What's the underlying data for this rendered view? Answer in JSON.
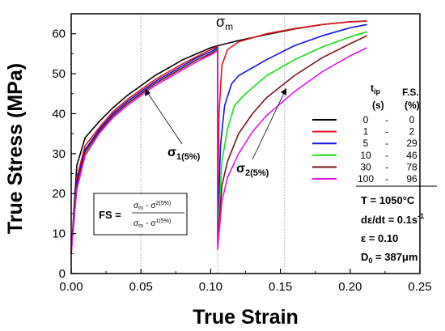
{
  "chart_data": {
    "type": "line",
    "xlabel": "True Strain",
    "ylabel": "True Stress (MPa)",
    "xlim": [
      0.0,
      0.25
    ],
    "ylim": [
      0,
      65
    ],
    "x_ticks": [
      "0.00",
      "0.05",
      "0.10",
      "0.15",
      "0.20",
      "0.25"
    ],
    "y_ticks": [
      "0",
      "10",
      "20",
      "30",
      "40",
      "50",
      "60"
    ],
    "grid": false,
    "reference_lines_x": [
      0.05,
      0.105,
      0.153
    ],
    "legend": {
      "placement": "right",
      "header_col1": "tip",
      "header_col1_base": "t",
      "header_col1_sub": "ip",
      "header_col1_unit": "(s)",
      "header_col2": "F.S.",
      "header_col2_unit": "(%)",
      "separator": "-"
    },
    "series": [
      {
        "tip": "0",
        "fs": "0",
        "color": "#000000",
        "points": [
          [
            0.0,
            5
          ],
          [
            0.004,
            27
          ],
          [
            0.01,
            34
          ],
          [
            0.02,
            38
          ],
          [
            0.03,
            41.5
          ],
          [
            0.04,
            44.5
          ],
          [
            0.05,
            47
          ],
          [
            0.06,
            49.5
          ],
          [
            0.07,
            51.5
          ],
          [
            0.08,
            53.5
          ],
          [
            0.09,
            55
          ],
          [
            0.1,
            56.5
          ],
          [
            0.105,
            57
          ],
          [
            0.12,
            58.3
          ],
          [
            0.14,
            59.8
          ],
          [
            0.16,
            61.2
          ],
          [
            0.18,
            62.3
          ],
          [
            0.2,
            63
          ],
          [
            0.212,
            63.2
          ]
        ]
      },
      {
        "tip": "1",
        "fs": "2",
        "color": "#e8141c",
        "points": [
          [
            0.0,
            5
          ],
          [
            0.004,
            24
          ],
          [
            0.01,
            32
          ],
          [
            0.02,
            36.5
          ],
          [
            0.03,
            40.5
          ],
          [
            0.04,
            43.5
          ],
          [
            0.05,
            46
          ],
          [
            0.06,
            48.5
          ],
          [
            0.07,
            50.5
          ],
          [
            0.08,
            52.5
          ],
          [
            0.09,
            54.3
          ],
          [
            0.1,
            56
          ],
          [
            0.105,
            56.8
          ],
          [
            0.105,
            10
          ],
          [
            0.106,
            40
          ],
          [
            0.108,
            52
          ],
          [
            0.112,
            56
          ],
          [
            0.12,
            58
          ],
          [
            0.14,
            60
          ],
          [
            0.16,
            61.3
          ],
          [
            0.18,
            62.3
          ],
          [
            0.2,
            63
          ],
          [
            0.212,
            63.2
          ]
        ]
      },
      {
        "tip": "5",
        "fs": "29",
        "color": "#1414e8",
        "points": [
          [
            0.0,
            5
          ],
          [
            0.004,
            23
          ],
          [
            0.01,
            31
          ],
          [
            0.02,
            36
          ],
          [
            0.03,
            40
          ],
          [
            0.04,
            43
          ],
          [
            0.05,
            45.5
          ],
          [
            0.06,
            48
          ],
          [
            0.07,
            50
          ],
          [
            0.08,
            52
          ],
          [
            0.09,
            54
          ],
          [
            0.1,
            55.5
          ],
          [
            0.105,
            56.5
          ],
          [
            0.105,
            9
          ],
          [
            0.107,
            32
          ],
          [
            0.11,
            42
          ],
          [
            0.115,
            47.5
          ],
          [
            0.12,
            49.5
          ],
          [
            0.14,
            53.5
          ],
          [
            0.16,
            57
          ],
          [
            0.18,
            59.5
          ],
          [
            0.2,
            61.5
          ],
          [
            0.212,
            62.3
          ]
        ]
      },
      {
        "tip": "10",
        "fs": "46",
        "color": "#14e014",
        "points": [
          [
            0.0,
            5
          ],
          [
            0.004,
            22
          ],
          [
            0.01,
            30
          ],
          [
            0.02,
            35.5
          ],
          [
            0.03,
            39.5
          ],
          [
            0.04,
            42.5
          ],
          [
            0.05,
            45
          ],
          [
            0.06,
            47.5
          ],
          [
            0.07,
            49.5
          ],
          [
            0.08,
            51.5
          ],
          [
            0.09,
            53.5
          ],
          [
            0.1,
            55
          ],
          [
            0.105,
            56.2
          ],
          [
            0.105,
            8
          ],
          [
            0.108,
            28
          ],
          [
            0.112,
            36
          ],
          [
            0.117,
            42
          ],
          [
            0.125,
            45
          ],
          [
            0.14,
            49.5
          ],
          [
            0.16,
            53.5
          ],
          [
            0.18,
            56.7
          ],
          [
            0.2,
            59.2
          ],
          [
            0.212,
            60.5
          ]
        ]
      },
      {
        "tip": "30",
        "fs": "78",
        "color": "#7a1414",
        "points": [
          [
            0.0,
            5
          ],
          [
            0.004,
            22
          ],
          [
            0.01,
            30.5
          ],
          [
            0.02,
            35.5
          ],
          [
            0.03,
            39.5
          ],
          [
            0.04,
            42.5
          ],
          [
            0.05,
            45
          ],
          [
            0.06,
            47.5
          ],
          [
            0.07,
            49.5
          ],
          [
            0.08,
            51.5
          ],
          [
            0.09,
            53.5
          ],
          [
            0.1,
            55
          ],
          [
            0.105,
            56
          ],
          [
            0.105,
            7
          ],
          [
            0.108,
            22
          ],
          [
            0.112,
            28
          ],
          [
            0.12,
            35
          ],
          [
            0.13,
            40
          ],
          [
            0.14,
            44
          ],
          [
            0.16,
            49.5
          ],
          [
            0.18,
            54
          ],
          [
            0.2,
            57.5
          ],
          [
            0.212,
            59.5
          ]
        ]
      },
      {
        "tip": "100",
        "fs": "96",
        "color": "#e614e6",
        "points": [
          [
            0.0,
            5
          ],
          [
            0.004,
            21
          ],
          [
            0.01,
            29.5
          ],
          [
            0.02,
            35
          ],
          [
            0.03,
            39
          ],
          [
            0.04,
            42
          ],
          [
            0.05,
            44.5
          ],
          [
            0.06,
            47
          ],
          [
            0.07,
            49
          ],
          [
            0.08,
            51
          ],
          [
            0.09,
            53
          ],
          [
            0.1,
            54.7
          ],
          [
            0.105,
            55.8
          ],
          [
            0.105,
            6
          ],
          [
            0.108,
            18
          ],
          [
            0.112,
            24
          ],
          [
            0.12,
            30
          ],
          [
            0.13,
            35.5
          ],
          [
            0.14,
            39.5
          ],
          [
            0.16,
            45.5
          ],
          [
            0.18,
            50.5
          ],
          [
            0.2,
            54.5
          ],
          [
            0.212,
            56.5
          ]
        ]
      }
    ],
    "annotations": {
      "sigma_m": {
        "base": "σ",
        "sub": "m"
      },
      "sigma1": {
        "base": "σ",
        "sub": "1(5%)"
      },
      "sigma2": {
        "base": "σ",
        "sub": "2(5%)"
      },
      "formula": {
        "lhs": "FS =",
        "numerator": {
          "a": "σ",
          "a_sub": "m",
          "op": "-",
          "b": "σ",
          "b_sub": "2(5%)"
        },
        "denominator": {
          "a": "σ",
          "a_sub": "m",
          "op": "-",
          "b": "σ",
          "b_sub": "1(5%)"
        }
      },
      "conditions": [
        {
          "text": "T = 1050°C"
        },
        {
          "text": "dε/dt = 0.1s",
          "sup": "-1"
        },
        {
          "text": "ε = 0.10"
        },
        {
          "text": "D",
          "sub": "0",
          "rest": " = 387μm"
        }
      ]
    }
  }
}
